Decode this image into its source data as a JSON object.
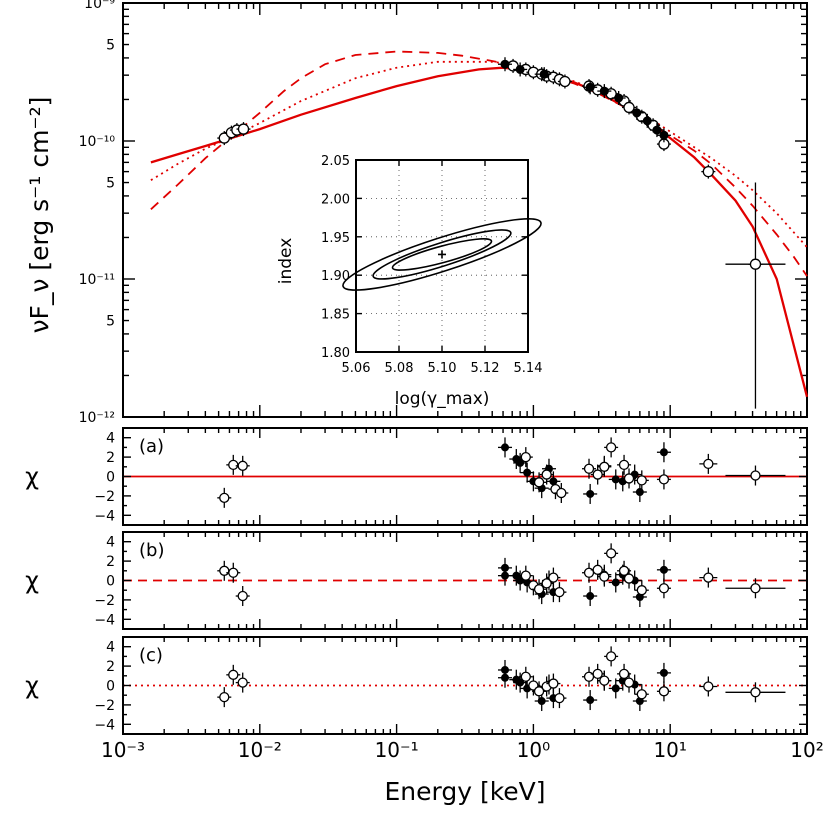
{
  "colors": {
    "model": "#e00000",
    "axis": "#000000",
    "open_point": "#ffffff",
    "filled_point": "#000000"
  },
  "chart_data": [
    {
      "type": "scatter",
      "id": "sed",
      "xlabel": "Energy [keV]",
      "ylabel": "νF_ν [erg s⁻¹ cm⁻²]",
      "xscale": "log",
      "yscale": "log",
      "xlim": [
        0.001,
        100
      ],
      "ylim": [
        1e-12,
        1e-09
      ],
      "y_tick_labels": [
        "10⁻¹²",
        "5",
        "10⁻¹¹",
        "5",
        "10⁻¹⁰",
        "5",
        "10⁻⁹"
      ],
      "series": [
        {
          "marker": "open",
          "points": [
            {
              "x": 0.0055,
              "y": 1.05e-10
            },
            {
              "x": 0.0062,
              "y": 1.15e-10
            },
            {
              "x": 0.0068,
              "y": 1.2e-10
            },
            {
              "x": 0.0076,
              "y": 1.22e-10
            },
            {
              "x": 0.71,
              "y": 3.5e-10
            },
            {
              "x": 0.88,
              "y": 3.3e-10
            },
            {
              "x": 1.0,
              "y": 3.15e-10
            },
            {
              "x": 1.15,
              "y": 3.05e-10
            },
            {
              "x": 1.25,
              "y": 2.95e-10
            },
            {
              "x": 1.4,
              "y": 2.9e-10
            },
            {
              "x": 1.55,
              "y": 2.8e-10
            },
            {
              "x": 1.7,
              "y": 2.7e-10
            },
            {
              "x": 2.55,
              "y": 2.5e-10
            },
            {
              "x": 2.95,
              "y": 2.35e-10
            },
            {
              "x": 3.7,
              "y": 2.2e-10
            },
            {
              "x": 4.6,
              "y": 1.95e-10
            },
            {
              "x": 5.0,
              "y": 1.75e-10
            },
            {
              "x": 6.2,
              "y": 1.5e-10
            },
            {
              "x": 7.5,
              "y": 1.3e-10
            },
            {
              "x": 9.0,
              "y": 9.5e-11
            },
            {
              "x": 19.0,
              "y": 6e-11
            },
            {
              "x": 42.0,
              "y": 1.28e-11,
              "yerr": [
                1.15e-12,
                5e-11
              ]
            }
          ]
        },
        {
          "marker": "filled",
          "points": [
            {
              "x": 0.62,
              "y": 3.6e-10
            },
            {
              "x": 0.8,
              "y": 3.3e-10
            },
            {
              "x": 1.2,
              "y": 3.05e-10
            },
            {
              "x": 2.6,
              "y": 2.45e-10
            },
            {
              "x": 3.3,
              "y": 2.3e-10
            },
            {
              "x": 4.2,
              "y": 2.05e-10
            },
            {
              "x": 5.7,
              "y": 1.6e-10
            },
            {
              "x": 6.8,
              "y": 1.4e-10
            },
            {
              "x": 8.0,
              "y": 1.2e-10
            },
            {
              "x": 9.0,
              "y": 1.1e-10
            }
          ]
        }
      ],
      "models": [
        {
          "style": "solid",
          "x": [
            0.0016,
            0.0025,
            0.004,
            0.006,
            0.01,
            0.02,
            0.05,
            0.1,
            0.2,
            0.4,
            0.6,
            1,
            2,
            3,
            5,
            8,
            10,
            15,
            20,
            30,
            40,
            60,
            100
          ],
          "y": [
            7e-11,
            8e-11,
            9.2e-11,
            1.04e-10,
            1.22e-10,
            1.55e-10,
            2.05e-10,
            2.5e-10,
            2.95e-10,
            3.3e-10,
            3.4e-10,
            3.2e-10,
            2.65e-10,
            2.25e-10,
            1.7e-10,
            1.25e-10,
            1.05e-10,
            7.6e-11,
            5.7e-11,
            3.7e-11,
            2.4e-11,
            1e-11,
            1.4e-12
          ]
        },
        {
          "style": "dashed",
          "x": [
            0.0016,
            0.0025,
            0.004,
            0.006,
            0.01,
            0.015,
            0.02,
            0.03,
            0.05,
            0.1,
            0.2,
            0.3,
            0.5,
            0.7,
            1,
            2,
            3,
            5,
            8,
            10,
            15,
            20,
            30,
            40,
            60,
            80,
            100
          ],
          "y": [
            3.2e-11,
            4.8e-11,
            7.5e-11,
            1.05e-10,
            1.6e-10,
            2.3e-10,
            2.85e-10,
            3.6e-10,
            4.2e-10,
            4.45e-10,
            4.35e-10,
            4.15e-10,
            3.8e-10,
            3.55e-10,
            3.2e-10,
            2.6e-10,
            2.2e-10,
            1.7e-10,
            1.27e-10,
            1.1e-10,
            8.5e-11,
            6.8e-11,
            4.6e-11,
            3.4e-11,
            2.1e-11,
            1.45e-11,
            1.05e-11
          ]
        },
        {
          "style": "dotted",
          "x": [
            0.0016,
            0.0025,
            0.004,
            0.006,
            0.01,
            0.02,
            0.05,
            0.1,
            0.2,
            0.5,
            0.7,
            1,
            2,
            3,
            5,
            8,
            10,
            15,
            20,
            30,
            40,
            60,
            100
          ],
          "y": [
            5.2e-11,
            6.8e-11,
            8.8e-11,
            1.05e-10,
            1.35e-10,
            1.95e-10,
            2.85e-10,
            3.4e-10,
            3.75e-10,
            3.75e-10,
            3.6e-10,
            3.25e-10,
            2.7e-10,
            2.3e-10,
            1.8e-10,
            1.35e-10,
            1.17e-10,
            9e-11,
            7.5e-11,
            5.6e-11,
            4.4e-11,
            3e-11,
            1.7e-11
          ]
        }
      ]
    },
    {
      "type": "line",
      "id": "inset-contour",
      "xlabel": "log(γ_max)",
      "ylabel": "index",
      "xlim": [
        5.06,
        5.14
      ],
      "ylim": [
        1.8,
        2.05
      ],
      "x_tick_labels": [
        "5.06",
        "5.08",
        "5.10",
        "5.12",
        "5.14"
      ],
      "y_tick_labels": [
        "1.80",
        "1.85",
        "1.90",
        "1.95",
        "2.00",
        "2.05"
      ],
      "grid": true,
      "best_fit": {
        "x": 5.1,
        "y": 1.927
      },
      "contours": [
        {
          "center": [
            5.1,
            1.927
          ],
          "x_extent": [
            5.076,
            5.122
          ],
          "y_extent": [
            1.91,
            1.945
          ]
        },
        {
          "center": [
            5.1,
            1.927
          ],
          "x_extent": [
            5.068,
            5.132
          ],
          "y_extent": [
            1.898,
            1.955
          ]
        },
        {
          "center": [
            5.1,
            1.927
          ],
          "x_extent": [
            5.053,
            5.145
          ],
          "y_extent": [
            1.887,
            1.97
          ]
        }
      ]
    },
    {
      "type": "scatter",
      "id": "residuals",
      "ylabel": "χ",
      "ylim": [
        -5,
        5
      ],
      "y_tick_labels": [
        "4",
        "2",
        "0",
        "−2",
        "−4"
      ],
      "x_tick_labels": [
        "10⁻³",
        "10⁻²",
        "10⁻¹",
        "10⁰",
        "10¹",
        "10²"
      ],
      "panels": [
        {
          "label": "(a)",
          "line": "solid",
          "open": [
            [
              0.0055,
              -2.2
            ],
            [
              0.0064,
              1.2
            ],
            [
              0.0075,
              1.1
            ],
            [
              0.88,
              2.0
            ],
            [
              1.1,
              -0.6
            ],
            [
              1.25,
              0.2
            ],
            [
              1.45,
              -1.3
            ],
            [
              1.6,
              -1.7
            ],
            [
              2.55,
              0.8
            ],
            [
              2.95,
              0.2
            ],
            [
              3.3,
              1.0
            ],
            [
              3.7,
              3.0
            ],
            [
              4.6,
              1.2
            ],
            [
              5.0,
              -0.2
            ],
            [
              6.2,
              -0.4
            ],
            [
              9.0,
              -0.3
            ],
            [
              19.0,
              1.3
            ],
            [
              42.0,
              0.1
            ]
          ],
          "filled": [
            [
              0.62,
              3.0
            ],
            [
              0.75,
              1.8
            ],
            [
              0.8,
              1.4
            ],
            [
              0.9,
              0.4
            ],
            [
              1.0,
              -0.5
            ],
            [
              1.15,
              -1.2
            ],
            [
              1.3,
              0.8
            ],
            [
              1.4,
              -0.5
            ],
            [
              2.6,
              -1.8
            ],
            [
              3.3,
              1.1
            ],
            [
              4.0,
              -0.3
            ],
            [
              4.5,
              -0.5
            ],
            [
              5.5,
              0.2
            ],
            [
              6.0,
              -1.6
            ],
            [
              9.0,
              2.5
            ]
          ]
        },
        {
          "label": "(b)",
          "line": "dashed",
          "open": [
            [
              0.0055,
              1.0
            ],
            [
              0.0064,
              0.8
            ],
            [
              0.0075,
              -1.6
            ],
            [
              0.88,
              0.5
            ],
            [
              1.0,
              -0.5
            ],
            [
              1.1,
              -0.9
            ],
            [
              1.25,
              -0.3
            ],
            [
              1.4,
              0.3
            ],
            [
              1.55,
              -1.2
            ],
            [
              2.55,
              0.8
            ],
            [
              2.95,
              1.1
            ],
            [
              3.3,
              0.4
            ],
            [
              3.7,
              2.8
            ],
            [
              4.6,
              1.0
            ],
            [
              5.0,
              0.2
            ],
            [
              6.2,
              -1.0
            ],
            [
              9.0,
              -0.8
            ],
            [
              19.0,
              0.3
            ],
            [
              42.0,
              -0.8
            ]
          ],
          "filled": [
            [
              0.62,
              1.3
            ],
            [
              0.62,
              0.5
            ],
            [
              0.75,
              0.5
            ],
            [
              0.8,
              0.0
            ],
            [
              0.9,
              -0.2
            ],
            [
              1.15,
              -1.4
            ],
            [
              1.3,
              0.0
            ],
            [
              1.4,
              -1.2
            ],
            [
              2.6,
              -1.6
            ],
            [
              3.3,
              0.6
            ],
            [
              4.0,
              -0.2
            ],
            [
              4.5,
              0.6
            ],
            [
              5.5,
              0.0
            ],
            [
              6.0,
              -1.7
            ],
            [
              9.0,
              1.1
            ]
          ]
        },
        {
          "label": "(c)",
          "line": "dotted",
          "open": [
            [
              0.0055,
              -1.2
            ],
            [
              0.0064,
              1.1
            ],
            [
              0.0075,
              0.3
            ],
            [
              0.88,
              0.9
            ],
            [
              1.0,
              0.0
            ],
            [
              1.1,
              -0.6
            ],
            [
              1.25,
              -0.1
            ],
            [
              1.4,
              0.2
            ],
            [
              1.55,
              -1.3
            ],
            [
              2.55,
              0.9
            ],
            [
              2.95,
              1.2
            ],
            [
              3.3,
              0.5
            ],
            [
              3.7,
              3.0
            ],
            [
              4.6,
              1.2
            ],
            [
              5.0,
              0.3
            ],
            [
              6.2,
              -0.9
            ],
            [
              9.0,
              -0.6
            ],
            [
              19.0,
              -0.1
            ],
            [
              42.0,
              -0.7
            ]
          ],
          "filled": [
            [
              0.62,
              1.6
            ],
            [
              0.62,
              0.8
            ],
            [
              0.75,
              0.6
            ],
            [
              0.8,
              0.3
            ],
            [
              0.9,
              -0.3
            ],
            [
              1.15,
              -1.6
            ],
            [
              1.3,
              0.1
            ],
            [
              1.4,
              -1.3
            ],
            [
              2.6,
              -1.5
            ],
            [
              3.3,
              0.5
            ],
            [
              4.0,
              -0.3
            ],
            [
              4.5,
              0.5
            ],
            [
              5.5,
              0.1
            ],
            [
              6.0,
              -1.6
            ],
            [
              9.0,
              1.3
            ]
          ]
        }
      ]
    }
  ]
}
